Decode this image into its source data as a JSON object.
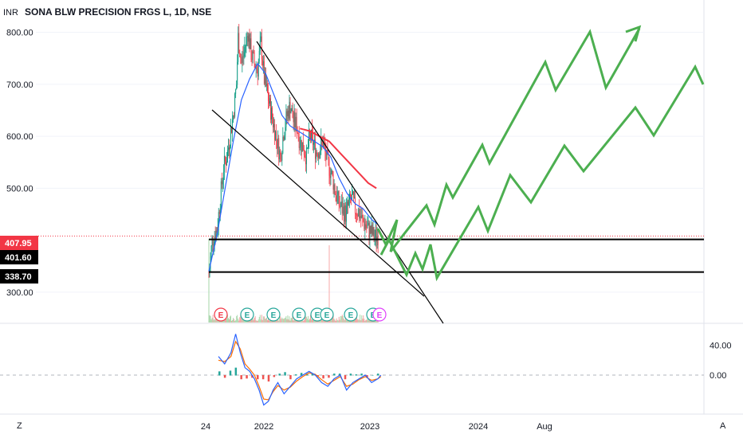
{
  "chart_data": {
    "type": "candlestick",
    "title": "SONA BLW PRECISION FRGS L, 1D, NSE",
    "currency": "INR",
    "y_ticks": [
      "800.00",
      "700.00",
      "600.00",
      "500.00",
      "300.00"
    ],
    "y_tick_values": [
      800,
      700,
      600,
      500,
      300
    ],
    "ylim": [
      240,
      850
    ],
    "x_ticks": [
      "24",
      "2022",
      "2023",
      "2024",
      "Aug"
    ],
    "price_badges": [
      {
        "label": "407.95",
        "value": 407.95,
        "color": "#f23645"
      },
      {
        "label": "401.60",
        "value": 401.6,
        "color": "#000000"
      },
      {
        "label": "338.70",
        "value": 338.7,
        "color": "#000000"
      }
    ],
    "support_levels": [
      401.6,
      338.7
    ],
    "earnings_markers": [
      "E",
      "E",
      "E",
      "E",
      "E",
      "E",
      "E",
      "E",
      "E"
    ],
    "price_path": [
      [
        0,
        330
      ],
      [
        4,
        400
      ],
      [
        10,
        420
      ],
      [
        14,
        480
      ],
      [
        18,
        540
      ],
      [
        22,
        560
      ],
      [
        26,
        600
      ],
      [
        30,
        640
      ],
      [
        34,
        700
      ],
      [
        36,
        790
      ],
      [
        40,
        740
      ],
      [
        44,
        770
      ],
      [
        48,
        800
      ],
      [
        52,
        760
      ],
      [
        56,
        740
      ],
      [
        60,
        730
      ],
      [
        64,
        780
      ],
      [
        68,
        710
      ],
      [
        72,
        680
      ],
      [
        76,
        650
      ],
      [
        80,
        620
      ],
      [
        84,
        590
      ],
      [
        88,
        560
      ],
      [
        92,
        610
      ],
      [
        96,
        640
      ],
      [
        100,
        660
      ],
      [
        104,
        630
      ],
      [
        108,
        620
      ],
      [
        112,
        590
      ],
      [
        116,
        580
      ],
      [
        120,
        560
      ],
      [
        124,
        600
      ],
      [
        128,
        590
      ],
      [
        132,
        570
      ],
      [
        136,
        575
      ],
      [
        140,
        590
      ],
      [
        144,
        560
      ],
      [
        148,
        540
      ],
      [
        152,
        520
      ],
      [
        156,
        490
      ],
      [
        160,
        470
      ],
      [
        164,
        460
      ],
      [
        168,
        450
      ],
      [
        172,
        470
      ],
      [
        176,
        480
      ],
      [
        180,
        460
      ],
      [
        184,
        455
      ],
      [
        188,
        440
      ],
      [
        192,
        430
      ],
      [
        196,
        420
      ],
      [
        200,
        415
      ],
      [
        204,
        405
      ],
      [
        208,
        410
      ]
    ],
    "ma_fast": [
      [
        0,
        340
      ],
      [
        10,
        410
      ],
      [
        20,
        500
      ],
      [
        30,
        590
      ],
      [
        40,
        670
      ],
      [
        50,
        710
      ],
      [
        60,
        740
      ],
      [
        70,
        720
      ],
      [
        80,
        680
      ],
      [
        90,
        640
      ],
      [
        100,
        620
      ],
      [
        110,
        610
      ],
      [
        120,
        600
      ],
      [
        130,
        590
      ],
      [
        140,
        580
      ],
      [
        150,
        560
      ],
      [
        160,
        520
      ],
      [
        170,
        490
      ],
      [
        180,
        470
      ],
      [
        190,
        460
      ],
      [
        200,
        440
      ],
      [
        208,
        430
      ]
    ],
    "ma_slow": [
      [
        112,
        615
      ],
      [
        124,
        610
      ],
      [
        136,
        600
      ],
      [
        148,
        590
      ],
      [
        160,
        570
      ],
      [
        172,
        550
      ],
      [
        184,
        530
      ],
      [
        196,
        510
      ],
      [
        206,
        500
      ]
    ],
    "indicator": {
      "ticks": [
        "40.00",
        "0.00"
      ],
      "tick_values": [
        40,
        0
      ],
      "ylim": [
        -50,
        65
      ],
      "line_a": [
        [
          0,
          25
        ],
        [
          8,
          15
        ],
        [
          16,
          30
        ],
        [
          22,
          55
        ],
        [
          28,
          30
        ],
        [
          34,
          10
        ],
        [
          40,
          5
        ],
        [
          46,
          -5
        ],
        [
          52,
          -20
        ],
        [
          58,
          -40
        ],
        [
          64,
          -35
        ],
        [
          70,
          -20
        ],
        [
          76,
          -10
        ],
        [
          84,
          -25
        ],
        [
          92,
          -15
        ],
        [
          100,
          -5
        ],
        [
          108,
          0
        ],
        [
          116,
          5
        ],
        [
          124,
          0
        ],
        [
          132,
          -10
        ],
        [
          140,
          -15
        ],
        [
          148,
          -5
        ],
        [
          156,
          0
        ],
        [
          164,
          -20
        ],
        [
          172,
          -10
        ],
        [
          180,
          -5
        ],
        [
          188,
          0
        ],
        [
          196,
          -10
        ],
        [
          204,
          -5
        ],
        [
          208,
          0
        ]
      ],
      "line_b": [
        [
          0,
          20
        ],
        [
          8,
          18
        ],
        [
          16,
          25
        ],
        [
          22,
          45
        ],
        [
          28,
          35
        ],
        [
          34,
          15
        ],
        [
          40,
          8
        ],
        [
          46,
          0
        ],
        [
          52,
          -15
        ],
        [
          58,
          -32
        ],
        [
          64,
          -33
        ],
        [
          70,
          -22
        ],
        [
          76,
          -14
        ],
        [
          84,
          -20
        ],
        [
          92,
          -16
        ],
        [
          100,
          -8
        ],
        [
          108,
          -2
        ],
        [
          116,
          3
        ],
        [
          124,
          1
        ],
        [
          132,
          -6
        ],
        [
          140,
          -12
        ],
        [
          148,
          -7
        ],
        [
          156,
          -2
        ],
        [
          164,
          -15
        ],
        [
          172,
          -12
        ],
        [
          180,
          -6
        ],
        [
          188,
          -2
        ],
        [
          196,
          -7
        ],
        [
          204,
          -5
        ],
        [
          208,
          -2
        ]
      ],
      "histogram": [
        5,
        -3,
        6,
        10,
        -5,
        -4,
        -3,
        -5,
        -5,
        -8,
        -2,
        2,
        4,
        -5,
        1,
        3,
        2,
        2,
        -1,
        -4,
        -3,
        2,
        2,
        -5,
        2,
        1,
        2,
        -3,
        0,
        2
      ]
    },
    "bottom_buttons": [
      "Z",
      "A"
    ],
    "drawing_colors": {
      "wedge": "#000000",
      "projection": "#4caf50",
      "ma_fast": "#2962ff",
      "ma_slow": "#f23645"
    }
  }
}
